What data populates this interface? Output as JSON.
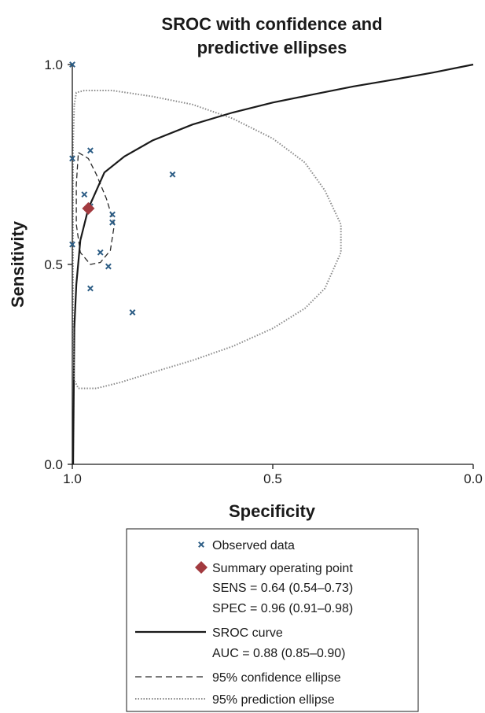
{
  "chart_data": {
    "type": "scatter",
    "title_lines": [
      "SROC with confidence and",
      "predictive ellipses"
    ],
    "xlabel": "Specificity",
    "ylabel": "Sensitivity",
    "xlim": [
      1.0,
      0.0
    ],
    "ylim": [
      0.0,
      1.0
    ],
    "x_ticks": [
      "1.0",
      "0.5",
      "0.0"
    ],
    "y_ticks": [
      "1.0",
      "0.5",
      "0.0"
    ],
    "grid": false,
    "legend_position": "bottom",
    "colors": {
      "observed": "#2e5e86",
      "summary": "#a23a3f",
      "sroc": "#1a1a1a",
      "confidence": "#2a2a2a",
      "prediction": "#8a8a8a"
    },
    "series": [
      {
        "name": "Observed data",
        "points": [
          {
            "x": 1.0,
            "y": 1.0
          },
          {
            "x": 1.0,
            "y": 0.765
          },
          {
            "x": 1.0,
            "y": 0.55
          },
          {
            "x": 0.955,
            "y": 0.785
          },
          {
            "x": 0.97,
            "y": 0.675
          },
          {
            "x": 0.955,
            "y": 0.645
          },
          {
            "x": 0.9,
            "y": 0.625
          },
          {
            "x": 0.9,
            "y": 0.605
          },
          {
            "x": 0.93,
            "y": 0.53
          },
          {
            "x": 0.91,
            "y": 0.495
          },
          {
            "x": 0.955,
            "y": 0.44
          },
          {
            "x": 0.85,
            "y": 0.38
          },
          {
            "x": 0.75,
            "y": 0.725
          }
        ]
      },
      {
        "name": "Summary operating point",
        "points": [
          {
            "x": 0.96,
            "y": 0.64
          }
        ]
      },
      {
        "name": "SROC curve",
        "points": [
          {
            "x": 0.995,
            "y": 0.34
          },
          {
            "x": 0.99,
            "y": 0.45
          },
          {
            "x": 0.98,
            "y": 0.56
          },
          {
            "x": 0.96,
            "y": 0.64
          },
          {
            "x": 0.92,
            "y": 0.73
          },
          {
            "x": 0.87,
            "y": 0.77
          },
          {
            "x": 0.8,
            "y": 0.81
          },
          {
            "x": 0.7,
            "y": 0.85
          },
          {
            "x": 0.6,
            "y": 0.88
          },
          {
            "x": 0.5,
            "y": 0.905
          },
          {
            "x": 0.4,
            "y": 0.925
          },
          {
            "x": 0.3,
            "y": 0.945
          },
          {
            "x": 0.2,
            "y": 0.962
          },
          {
            "x": 0.1,
            "y": 0.98
          },
          {
            "x": 0.0,
            "y": 1.0
          }
        ]
      },
      {
        "name": "95% confidence ellipse",
        "points": [
          {
            "x": 0.985,
            "y": 0.78
          },
          {
            "x": 0.96,
            "y": 0.765
          },
          {
            "x": 0.94,
            "y": 0.725
          },
          {
            "x": 0.915,
            "y": 0.665
          },
          {
            "x": 0.895,
            "y": 0.6
          },
          {
            "x": 0.905,
            "y": 0.535
          },
          {
            "x": 0.93,
            "y": 0.505
          },
          {
            "x": 0.955,
            "y": 0.5
          },
          {
            "x": 0.98,
            "y": 0.53
          },
          {
            "x": 0.99,
            "y": 0.6
          },
          {
            "x": 0.99,
            "y": 0.7
          },
          {
            "x": 0.985,
            "y": 0.78
          }
        ]
      },
      {
        "name": "95% prediction ellipse",
        "points": [
          {
            "x": 0.995,
            "y": 0.9
          },
          {
            "x": 0.99,
            "y": 0.93
          },
          {
            "x": 0.97,
            "y": 0.935
          },
          {
            "x": 0.9,
            "y": 0.935
          },
          {
            "x": 0.8,
            "y": 0.92
          },
          {
            "x": 0.7,
            "y": 0.9
          },
          {
            "x": 0.6,
            "y": 0.865
          },
          {
            "x": 0.5,
            "y": 0.815
          },
          {
            "x": 0.42,
            "y": 0.755
          },
          {
            "x": 0.37,
            "y": 0.685
          },
          {
            "x": 0.33,
            "y": 0.6
          },
          {
            "x": 0.33,
            "y": 0.53
          },
          {
            "x": 0.37,
            "y": 0.44
          },
          {
            "x": 0.42,
            "y": 0.39
          },
          {
            "x": 0.5,
            "y": 0.34
          },
          {
            "x": 0.6,
            "y": 0.295
          },
          {
            "x": 0.7,
            "y": 0.26
          },
          {
            "x": 0.8,
            "y": 0.23
          },
          {
            "x": 0.88,
            "y": 0.205
          },
          {
            "x": 0.94,
            "y": 0.19
          },
          {
            "x": 0.985,
            "y": 0.19
          },
          {
            "x": 0.995,
            "y": 0.21
          },
          {
            "x": 0.998,
            "y": 0.35
          },
          {
            "x": 0.998,
            "y": 0.6
          },
          {
            "x": 0.998,
            "y": 0.8
          },
          {
            "x": 0.995,
            "y": 0.9
          }
        ]
      }
    ],
    "legend": [
      {
        "marker": "x",
        "label": "Observed data"
      },
      {
        "marker": "diamond",
        "label": "Summary operating point"
      },
      {
        "marker": "none",
        "label": "SENS = 0.64 (0.54–0.73)"
      },
      {
        "marker": "none",
        "label": "SPEC = 0.96 (0.91–0.98)"
      },
      {
        "marker": "solid",
        "label": "SROC curve"
      },
      {
        "marker": "none",
        "label": "AUC = 0.88 (0.85–0.90)"
      },
      {
        "marker": "dashed",
        "label": "95% confidence ellipse"
      },
      {
        "marker": "dotted",
        "label": "95% prediction ellipse"
      }
    ]
  }
}
